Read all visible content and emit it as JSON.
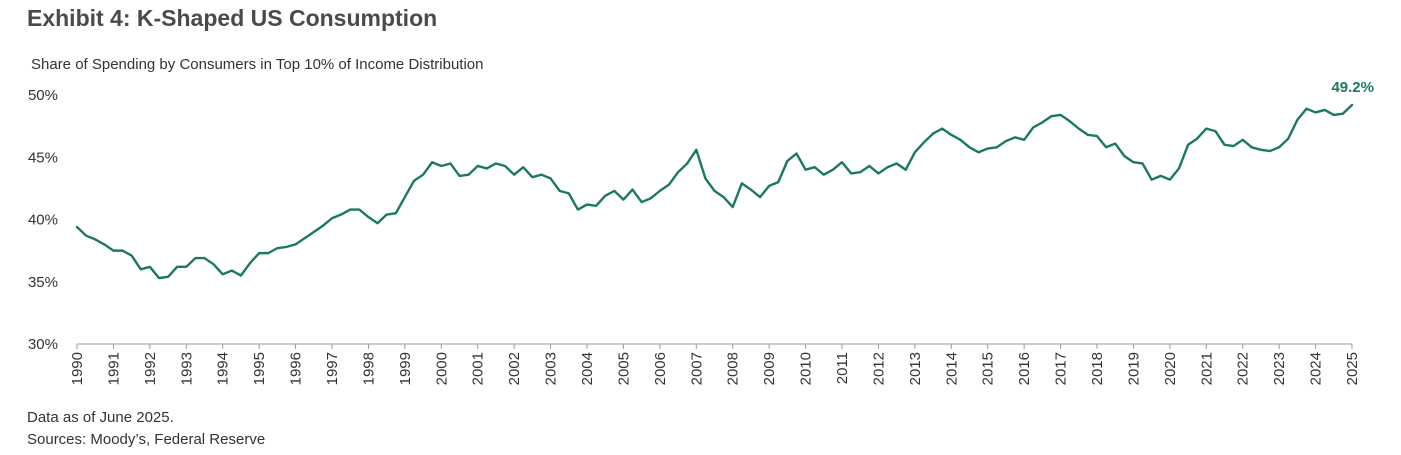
{
  "header": {
    "title": "Exhibit 4: K-Shaped US Consumption"
  },
  "footer": {
    "data_note": "Data as of June 2025.",
    "sources": "Sources: Moody’s, Federal Reserve"
  },
  "colors": {
    "line": "#1b7a5c",
    "axis": "#9a9a9a",
    "text": "#333333"
  },
  "chart_data": {
    "type": "line",
    "title": "",
    "subtitle": "Share of Spending by Consumers in Top 10% of Income Distribution",
    "xlabel": "",
    "ylabel": "",
    "y_unit": "%",
    "ylim": [
      30,
      50
    ],
    "yticks": [
      30,
      35,
      40,
      45,
      50
    ],
    "ytick_labels": [
      "30%",
      "35%",
      "40%",
      "45%",
      "50%"
    ],
    "xlim": [
      1990,
      2025
    ],
    "xticks": [
      1990,
      1991,
      1992,
      1993,
      1994,
      1995,
      1996,
      1997,
      1998,
      1999,
      2000,
      2001,
      2002,
      2003,
      2004,
      2005,
      2006,
      2007,
      2008,
      2009,
      2010,
      2011,
      2012,
      2013,
      2014,
      2015,
      2016,
      2017,
      2018,
      2019,
      2020,
      2021,
      2022,
      2023,
      2024,
      2025
    ],
    "grid": false,
    "legend": "none",
    "end_label": "49.2%",
    "series": [
      {
        "x": [
          1990.0,
          1990.25,
          1990.5,
          1990.75,
          1991.0,
          1991.25,
          1991.5,
          1991.75,
          1992.0,
          1992.25,
          1992.5,
          1992.75,
          1993.0,
          1993.25,
          1993.5,
          1993.75,
          1994.0,
          1994.25,
          1994.5,
          1994.75,
          1995.0,
          1995.25,
          1995.5,
          1995.75,
          1996.0,
          1996.25,
          1996.5,
          1996.75,
          1997.0,
          1997.25,
          1997.5,
          1997.75,
          1998.0,
          1998.25,
          1998.5,
          1998.75,
          1999.0,
          1999.25,
          1999.5,
          1999.75,
          2000.0,
          2000.25,
          2000.5,
          2000.75,
          2001.0,
          2001.25,
          2001.5,
          2001.75,
          2002.0,
          2002.25,
          2002.5,
          2002.75,
          2003.0,
          2003.25,
          2003.5,
          2003.75,
          2004.0,
          2004.25,
          2004.5,
          2004.75,
          2005.0,
          2005.25,
          2005.5,
          2005.75,
          2006.0,
          2006.25,
          2006.5,
          2006.75,
          2007.0,
          2007.25,
          2007.5,
          2007.75,
          2008.0,
          2008.25,
          2008.5,
          2008.75,
          2009.0,
          2009.25,
          2009.5,
          2009.75,
          2010.0,
          2010.25,
          2010.5,
          2010.75,
          2011.0,
          2011.25,
          2011.5,
          2011.75,
          2012.0,
          2012.25,
          2012.5,
          2012.75,
          2013.0,
          2013.25,
          2013.5,
          2013.75,
          2014.0,
          2014.25,
          2014.5,
          2014.75,
          2015.0,
          2015.25,
          2015.5,
          2015.75,
          2016.0,
          2016.25,
          2016.5,
          2016.75,
          2017.0,
          2017.25,
          2017.5,
          2017.75,
          2018.0,
          2018.25,
          2018.5,
          2018.75,
          2019.0,
          2019.25,
          2019.5,
          2019.75,
          2020.0,
          2020.25,
          2020.5,
          2020.75,
          2021.0,
          2021.25,
          2021.5,
          2021.75,
          2022.0,
          2022.25,
          2022.5,
          2022.75,
          2023.0,
          2023.25,
          2023.5,
          2023.75,
          2024.0,
          2024.25,
          2024.5,
          2024.75,
          2025.0
        ],
        "y": [
          39.4,
          38.7,
          38.4,
          38.0,
          37.5,
          37.5,
          37.1,
          36.0,
          36.2,
          35.3,
          35.4,
          36.2,
          36.2,
          36.9,
          36.9,
          36.4,
          35.6,
          35.9,
          35.5,
          36.5,
          37.3,
          37.3,
          37.7,
          37.8,
          38.0,
          38.5,
          39.0,
          39.5,
          40.1,
          40.4,
          40.8,
          40.8,
          40.2,
          39.7,
          40.4,
          40.5,
          41.8,
          43.1,
          43.6,
          44.6,
          44.3,
          44.5,
          43.5,
          43.6,
          44.3,
          44.1,
          44.5,
          44.3,
          43.6,
          44.2,
          43.4,
          43.6,
          43.3,
          42.3,
          42.1,
          40.8,
          41.2,
          41.1,
          41.9,
          42.3,
          41.6,
          42.4,
          41.4,
          41.7,
          42.3,
          42.8,
          43.8,
          44.5,
          45.6,
          43.3,
          42.3,
          41.8,
          41.0,
          42.9,
          42.4,
          41.8,
          42.7,
          43.0,
          44.7,
          45.3,
          44.0,
          44.2,
          43.6,
          44.0,
          44.6,
          43.7,
          43.8,
          44.3,
          43.7,
          44.2,
          44.5,
          44.0,
          45.4,
          46.2,
          46.9,
          47.3,
          46.8,
          46.4,
          45.8,
          45.4,
          45.7,
          45.8,
          46.3,
          46.6,
          46.4,
          47.4,
          47.8,
          48.3,
          48.4,
          47.9,
          47.3,
          46.8,
          46.7,
          45.8,
          46.1,
          45.1,
          44.6,
          44.5,
          43.2,
          43.5,
          43.2,
          44.1,
          46.0,
          46.5,
          47.3,
          47.1,
          46.0,
          45.9,
          46.4,
          45.8,
          45.6,
          45.5,
          45.8,
          46.5,
          48.0,
          48.9,
          48.6,
          48.8,
          48.4,
          48.5,
          49.2
        ]
      }
    ]
  }
}
